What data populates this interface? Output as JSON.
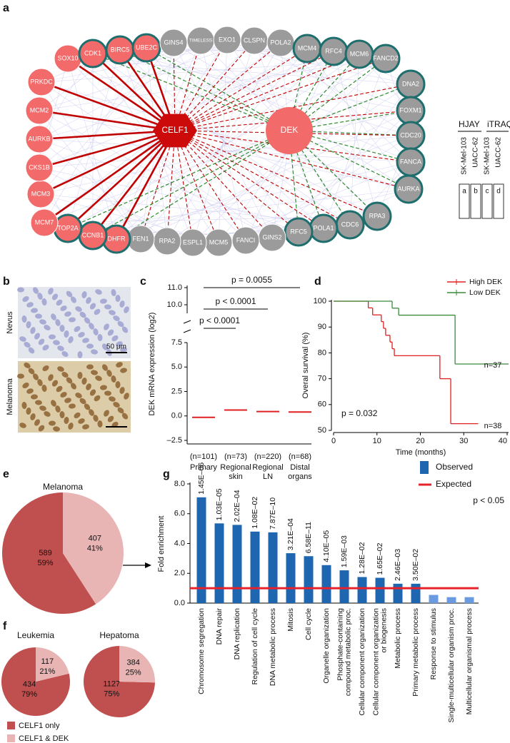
{
  "panel_labels": [
    "a",
    "b",
    "c",
    "d",
    "e",
    "f",
    "g"
  ],
  "network": {
    "hubs": [
      {
        "label": "CELF1",
        "color": "#cc0a0a",
        "shape": "hexagon"
      },
      {
        "label": "DEK",
        "color": "#f36a6a",
        "shape": "circle"
      }
    ],
    "celf1_edge_color": "#c00000",
    "dek_edge_color": "#2e8b2e",
    "outline_color": "#1f6e6e",
    "nodes": [
      {
        "label": "PRKDC",
        "color": "#f36a6a",
        "outline": false
      },
      {
        "label": "SOX10",
        "color": "#f36a6a",
        "outline": false
      },
      {
        "label": "CDK1",
        "color": "#f36a6a",
        "outline": true
      },
      {
        "label": "BIRC5",
        "color": "#f36a6a",
        "outline": true
      },
      {
        "label": "UBE2C",
        "color": "#f36a6a",
        "outline": true
      },
      {
        "label": "GINS4",
        "color": "#9b9b9b",
        "outline": false
      },
      {
        "label": "TIMELESS",
        "color": "#9b9b9b",
        "outline": false
      },
      {
        "label": "EXO1",
        "color": "#9b9b9b",
        "outline": false
      },
      {
        "label": "CLSPN",
        "color": "#9b9b9b",
        "outline": false
      },
      {
        "label": "POLA2",
        "color": "#9b9b9b",
        "outline": false
      },
      {
        "label": "MCM4",
        "color": "#9b9b9b",
        "outline": true
      },
      {
        "label": "RFC4",
        "color": "#9b9b9b",
        "outline": true
      },
      {
        "label": "MCM6",
        "color": "#9b9b9b",
        "outline": true
      },
      {
        "label": "FANCD2",
        "color": "#9b9b9b",
        "outline": true
      },
      {
        "label": "DNA2",
        "color": "#9b9b9b",
        "outline": true
      },
      {
        "label": "FOXM1",
        "color": "#9b9b9b",
        "outline": true
      },
      {
        "label": "CDC20",
        "color": "#9b9b9b",
        "outline": true
      },
      {
        "label": "FANCA",
        "color": "#9b9b9b",
        "outline": true
      },
      {
        "label": "AURKA",
        "color": "#9b9b9b",
        "outline": true
      },
      {
        "label": "RPA3",
        "color": "#9b9b9b",
        "outline": true
      },
      {
        "label": "CDC6",
        "color": "#9b9b9b",
        "outline": true
      },
      {
        "label": "POLA1",
        "color": "#9b9b9b",
        "outline": true
      },
      {
        "label": "RFC5",
        "color": "#9b9b9b",
        "outline": true
      },
      {
        "label": "GINS2",
        "color": "#9b9b9b",
        "outline": false
      },
      {
        "label": "FANCI",
        "color": "#9b9b9b",
        "outline": false
      },
      {
        "label": "MCM5",
        "color": "#9b9b9b",
        "outline": false
      },
      {
        "label": "ESPL1",
        "color": "#9b9b9b",
        "outline": false
      },
      {
        "label": "RPA2",
        "color": "#9b9b9b",
        "outline": false
      },
      {
        "label": "FEN1",
        "color": "#9b9b9b",
        "outline": false
      },
      {
        "label": "DHFR",
        "color": "#f36a6a",
        "outline": true
      },
      {
        "label": "CCNB1",
        "color": "#f36a6a",
        "outline": true
      },
      {
        "label": "TOP2A",
        "color": "#f36a6a",
        "outline": true
      },
      {
        "label": "MCM7",
        "color": "#f36a6a",
        "outline": false
      },
      {
        "label": "MCM3",
        "color": "#f36a6a",
        "outline": false
      },
      {
        "label": "CKS1B",
        "color": "#f36a6a",
        "outline": false
      },
      {
        "label": "AURKB",
        "color": "#f36a6a",
        "outline": false
      },
      {
        "label": "MCM2",
        "color": "#f36a6a",
        "outline": false
      }
    ],
    "legend": {
      "groups": [
        "HJAY",
        "iTRAQ"
      ],
      "cell_lines": [
        "SK-Mel-103",
        "UACC-62",
        "SK-Mel-103",
        "UACC-62"
      ],
      "boxes": [
        "a",
        "b",
        "c",
        "d"
      ]
    }
  },
  "images": {
    "labels": [
      "Nevus",
      "Melanoma"
    ],
    "scale_bar": "50 μm"
  },
  "chart_data": [
    {
      "type": "strip",
      "ylabel": "DEK mRNA expression (log2)",
      "categories": [
        [
          "Primary"
        ],
        [
          "Regional",
          "skin"
        ],
        [
          "Regional",
          "LN"
        ],
        [
          "Distal",
          "organs"
        ]
      ],
      "n_labels": [
        "(n=101)",
        "(n=73)",
        "(n=220)",
        "(n=68)"
      ],
      "values": [
        -0.15,
        0.6,
        0.45,
        0.4
      ],
      "color": "#e02020",
      "ylim": [
        -2.5,
        11
      ],
      "axis_break": [
        7.5,
        9.5
      ],
      "yticks": [
        {
          "value": -2.5,
          "label": "–2.5"
        },
        {
          "value": 0,
          "label": "0.0"
        },
        {
          "value": 2.5,
          "label": "2.5"
        },
        {
          "value": 5,
          "label": "5.0"
        },
        {
          "value": 7.5,
          "label": "7.5"
        },
        {
          "value": 10,
          "label": "10.0"
        },
        {
          "value": 11,
          "label": "11.0"
        }
      ],
      "brackets": [
        {
          "label": "p = 0.0055",
          "from": "Primary",
          "to": "Distal organs"
        },
        {
          "label": "p < 0.0001",
          "from": "Primary",
          "to": "Regional LN"
        },
        {
          "label": "p < 0.0001",
          "from": "Primary",
          "to": "Regional skin"
        }
      ]
    },
    {
      "type": "survival",
      "xlabel": "Time (months)",
      "ylabel": "Overal survival (%)",
      "xlim": [
        0,
        40
      ],
      "xticks": [
        0,
        10,
        20,
        30,
        40
      ],
      "ylim": [
        50,
        100
      ],
      "yticks": [
        50,
        60,
        70,
        80,
        90,
        100
      ],
      "series": [
        {
          "name": "High DEK",
          "color": "#e02020",
          "x": [
            0,
            8,
            9,
            11,
            11.5,
            12,
            13,
            13.5,
            14,
            24.5,
            27,
            33
          ],
          "values": [
            100,
            97.4,
            94.7,
            92.1,
            89.5,
            86.8,
            84.2,
            81.6,
            78.9,
            70,
            52.6,
            52.6
          ]
        },
        {
          "name": "Low DEK",
          "color": "#3a8a3a",
          "x": [
            0,
            13.5,
            15,
            28,
            40
          ],
          "values": [
            100,
            97.3,
            94.6,
            75.7,
            75.7
          ]
        }
      ],
      "annotations": [
        "n=37",
        "n=38",
        "p = 0.032"
      ]
    },
    {
      "type": "pie",
      "title": "Melanoma",
      "values": [
        589,
        407
      ],
      "percent_labels": [
        "59%",
        "41%"
      ],
      "colors": [
        "#c0504f",
        "#e8b4b4"
      ]
    },
    {
      "type": "pie",
      "title": "Leukemia",
      "categories": [
        "CELF1 only",
        "CELF1 & DEK"
      ],
      "values": [
        434,
        117
      ],
      "percent_labels": [
        "79%",
        "21%"
      ],
      "colors": [
        "#c0504f",
        "#e8b4b4"
      ]
    },
    {
      "type": "pie",
      "title": "Hepatoma",
      "values": [
        1127,
        384
      ],
      "percent_labels": [
        "75%",
        "25%"
      ],
      "colors": [
        "#c0504f",
        "#e8b4b4"
      ]
    },
    {
      "type": "bar",
      "ylabel": "Fold enrichment",
      "note": "p < 0.05",
      "categories": [
        [
          "Chromosome segregation"
        ],
        [
          "DNA repair"
        ],
        [
          "DNA replication"
        ],
        [
          "Regulation of cell cycle"
        ],
        [
          "DNA metabolic process"
        ],
        [
          "Mitosis"
        ],
        [
          "Cell cycle"
        ],
        [
          "Organelle organization"
        ],
        [
          "Phosphate-containing",
          "compound metabolic proc."
        ],
        [
          "Cellular component organization"
        ],
        [
          "Cellular component organization",
          "or biogenesis"
        ],
        [
          "Metabolic process"
        ],
        [
          "Primary metabolic process"
        ],
        [
          "Response to stimulus"
        ],
        [
          "Single-multicellular organism proc."
        ],
        [
          "Multicellular organismal process"
        ]
      ],
      "ylim": [
        0,
        8
      ],
      "yticks": [
        {
          "value": 0,
          "label": "0.0"
        },
        {
          "value": 2,
          "label": "2.0"
        },
        {
          "value": 4,
          "label": "4.0"
        },
        {
          "value": 6,
          "label": "6.0"
        },
        {
          "value": 8,
          "label": "8.0"
        }
      ],
      "series": [
        {
          "name": "Observed",
          "color": "#1f66b0",
          "values": [
            7.1,
            5.35,
            5.25,
            4.8,
            4.75,
            3.35,
            3.15,
            2.55,
            2.2,
            1.75,
            1.7,
            1.3,
            1.3,
            0.55,
            0.4,
            0.4
          ],
          "value_labels": [
            "1.45E–06",
            "1.03E–05",
            "2.02E–04",
            "1.08E–02",
            "7.87E–10",
            "3.21E–04",
            "6.58E–11",
            "4.10E–05",
            "1.59E–03",
            "1.28E–02",
            "1.65E–02",
            "2.46E–03",
            "3.50E–02",
            null,
            null,
            null
          ],
          "colors": [
            "#1f66b0",
            "#1f66b0",
            "#1f66b0",
            "#1f66b0",
            "#1f66b0",
            "#1f66b0",
            "#1f66b0",
            "#1f66b0",
            "#1f66b0",
            "#1f66b0",
            "#1f66b0",
            "#1f66b0",
            "#1f66b0",
            "#6a9ae0",
            "#6a9ae0",
            "#6a9ae0"
          ]
        },
        {
          "name": "Expected",
          "color": "#e8222a",
          "values": [
            1,
            1,
            1,
            1,
            1,
            1,
            1,
            1,
            1,
            1,
            1,
            1,
            1,
            1,
            1,
            1
          ]
        }
      ]
    }
  ]
}
